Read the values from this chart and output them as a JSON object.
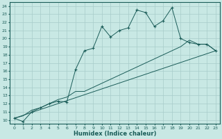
{
  "xlabel": "Humidex (Indice chaleur)",
  "xlim": [
    -0.5,
    23.5
  ],
  "ylim": [
    9.5,
    24.5
  ],
  "xticks": [
    0,
    1,
    2,
    3,
    4,
    5,
    6,
    7,
    8,
    9,
    10,
    11,
    12,
    13,
    14,
    15,
    16,
    17,
    18,
    19,
    20,
    21,
    22,
    23
  ],
  "yticks": [
    10,
    11,
    12,
    13,
    14,
    15,
    16,
    17,
    18,
    19,
    20,
    21,
    22,
    23,
    24
  ],
  "background_color": "#c8e8e4",
  "grid_color": "#a8ccca",
  "line_color": "#1a5c58",
  "lines": [
    {
      "x": [
        0,
        1,
        2,
        3,
        4,
        5,
        6,
        7,
        8,
        9,
        10,
        11,
        12,
        13,
        14,
        15,
        16,
        17,
        18,
        19,
        20,
        21,
        22,
        23
      ],
      "y": [
        10.2,
        9.8,
        11.0,
        11.5,
        12.0,
        12.3,
        12.2,
        16.2,
        18.5,
        18.8,
        21.5,
        20.2,
        21.0,
        21.3,
        23.5,
        23.2,
        21.5,
        22.2,
        23.8,
        20.0,
        19.5,
        19.3,
        19.3,
        18.5
      ],
      "marker": true
    },
    {
      "x": [
        0,
        1,
        2,
        3,
        4,
        5,
        6,
        7,
        8,
        9,
        10,
        11,
        12,
        13,
        14,
        15,
        16,
        17,
        18,
        19,
        20,
        21,
        22,
        23
      ],
      "y": [
        10.2,
        10.5,
        11.2,
        11.5,
        12.0,
        12.5,
        12.8,
        13.5,
        13.5,
        14.0,
        14.5,
        15.0,
        15.5,
        16.0,
        16.5,
        17.0,
        17.5,
        18.0,
        18.5,
        19.0,
        19.8,
        19.3,
        19.3,
        18.5
      ],
      "marker": false
    },
    {
      "x": [
        0,
        23
      ],
      "y": [
        10.2,
        18.5
      ],
      "marker": false
    }
  ]
}
